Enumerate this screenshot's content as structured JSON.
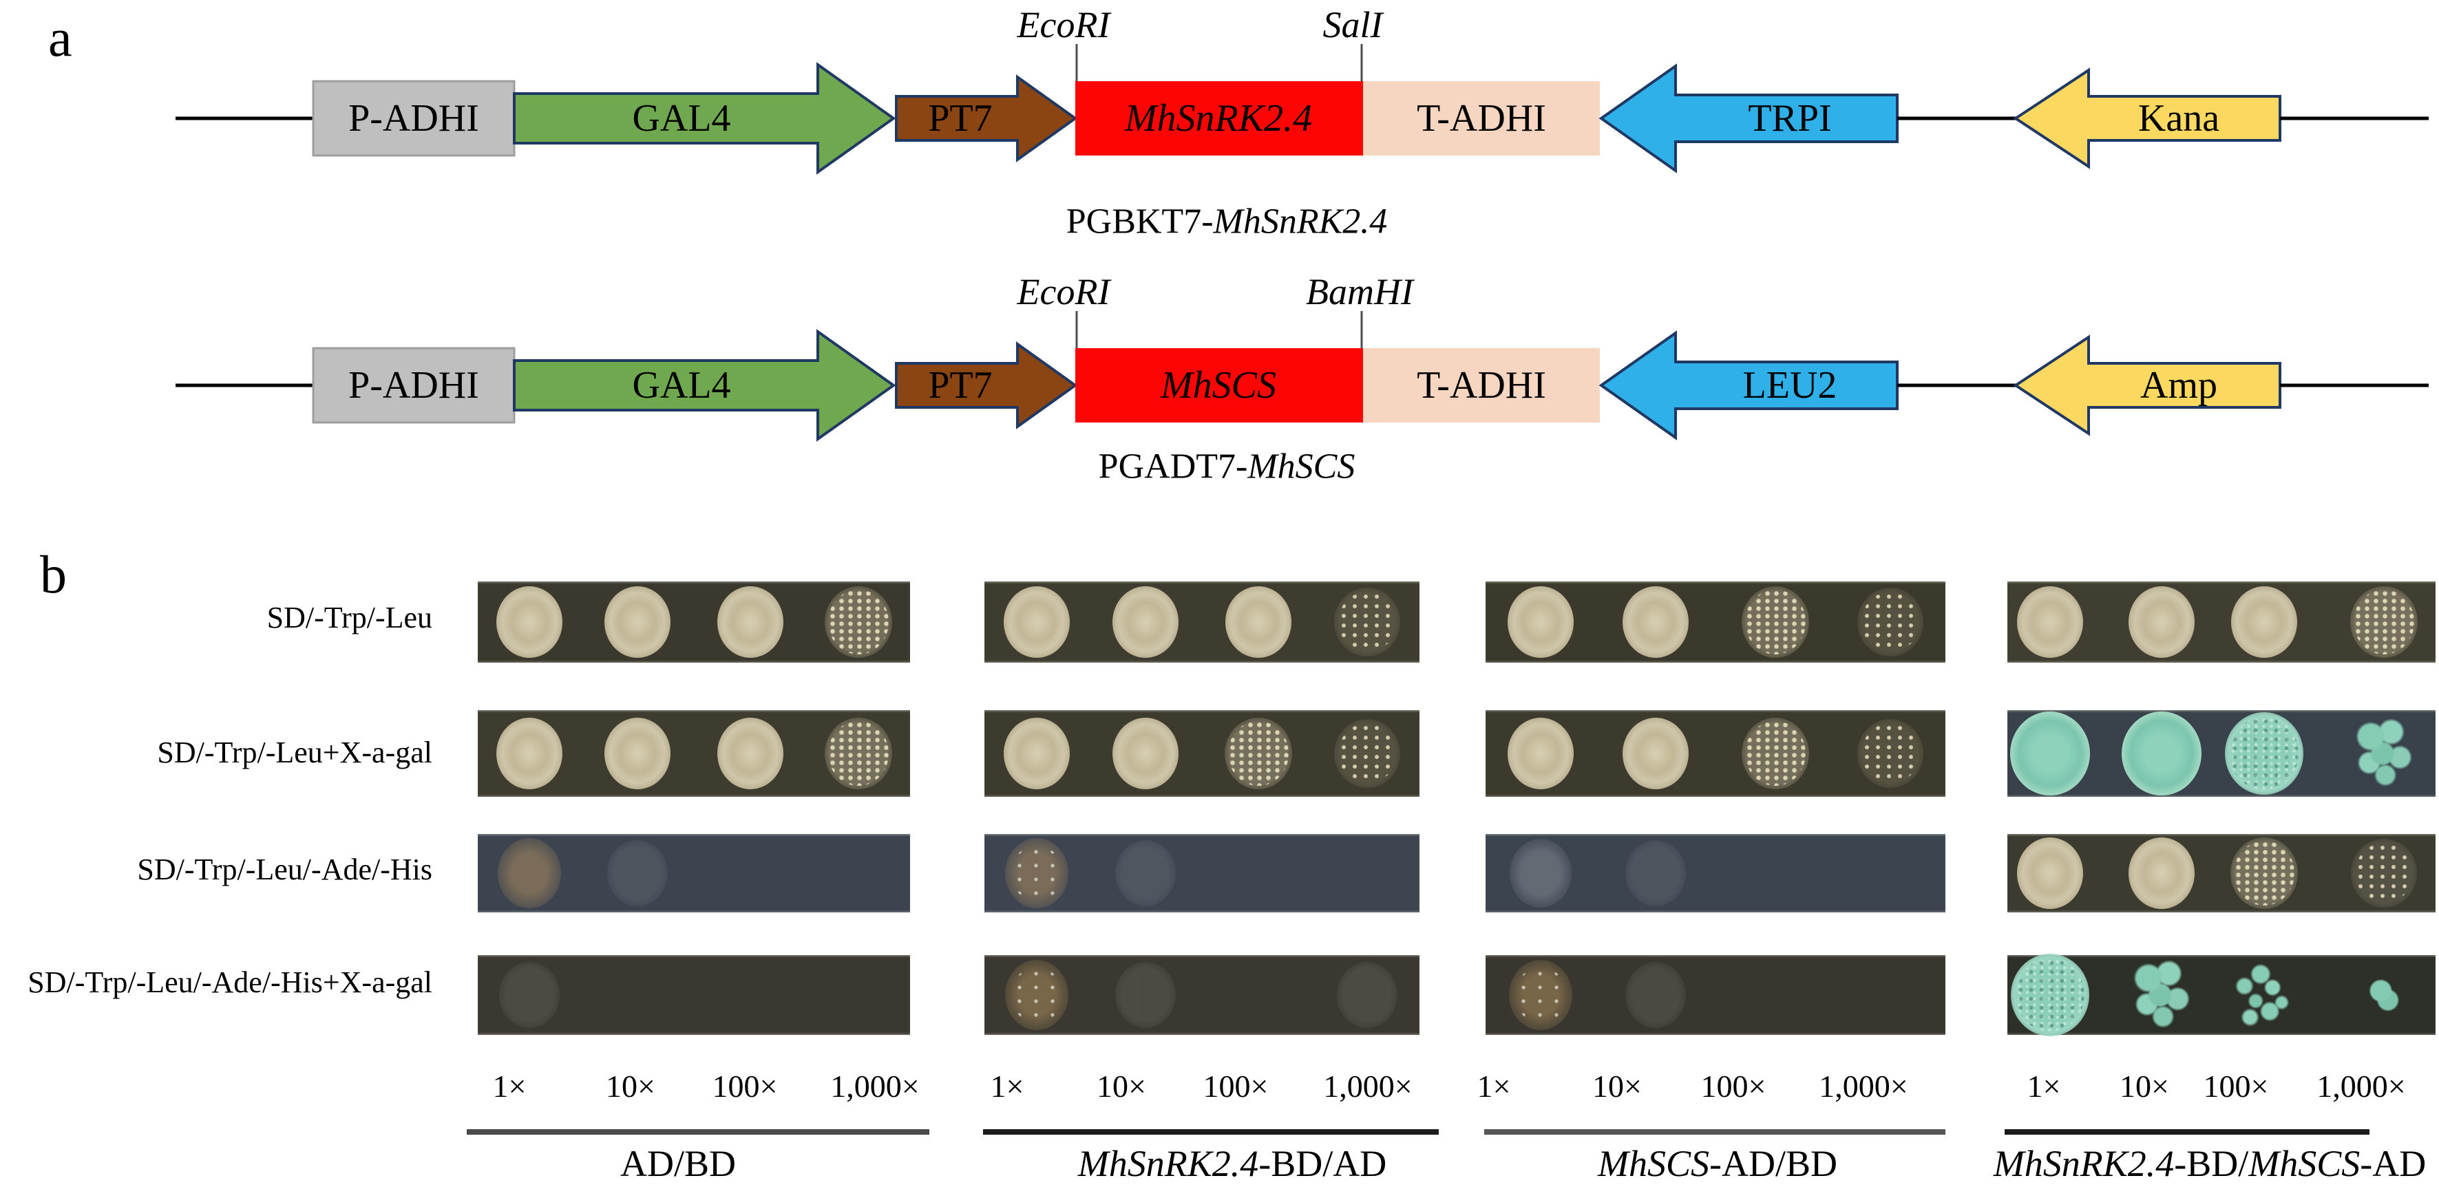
{
  "figure": {
    "panel_a_label": "a",
    "panel_b_label": "b"
  },
  "panel_a": {
    "restriction_sites": {
      "c1_left": "EcoRI",
      "c1_right": "SalI",
      "c2_left": "EcoRI",
      "c2_right": "BamHI"
    },
    "constructs": [
      {
        "promoter": "P-ADHI",
        "activator": "GAL4",
        "promoter2": "PT7",
        "gene": "MhSnRK2.4",
        "terminator": "T-ADHI",
        "selection_yeast": "TRPI",
        "selection_bacterial": "Kana",
        "caption_segments": [
          {
            "text": "PGBKT7-",
            "italic": false
          },
          {
            "text": "MhSnRK2.4",
            "italic": true
          }
        ]
      },
      {
        "promoter": "P-ADHI",
        "activator": "GAL4",
        "promoter2": "PT7",
        "gene": "MhSCS",
        "terminator": "T-ADHI",
        "selection_yeast": "LEU2",
        "selection_bacterial": "Amp",
        "caption_segments": [
          {
            "text": "PGADT7-",
            "italic": false
          },
          {
            "text": "MhSCS",
            "italic": true
          }
        ]
      }
    ],
    "colors": {
      "promoter_box": "#bfbfbf",
      "promoter_box_border": "#9e9e9e",
      "gal4_arrow": "#6fa84e",
      "pt7_arrow": "#8a4512",
      "gene_box": "#fe0505",
      "terminator_box": "#f6d6c0",
      "selection_yeast_arrow": "#2fb0e8",
      "selection_bacterial_arrow": "#fbd860",
      "arrow_outline": "#1f3864",
      "backbone_line": "#000000",
      "tick_line": "#4d4d4d"
    }
  },
  "panel_b": {
    "row_labels": [
      "SD/-Trp/-Leu",
      "SD/-Trp/-Leu+X-a-gal",
      "SD/-Trp/-Leu/-Ade/-His",
      "SD/-Trp/-Leu/-Ade/-His+X-a-gal"
    ],
    "dilutions": [
      "1×",
      "10×",
      "100×",
      "1,000×"
    ],
    "column_labels": [
      {
        "segments": [
          {
            "text": "AD/BD",
            "italic": false
          }
        ]
      },
      {
        "segments": [
          {
            "text": "MhSnRK2.4",
            "italic": true
          },
          {
            "text": "-BD/AD",
            "italic": false
          }
        ]
      },
      {
        "segments": [
          {
            "text": "MhSCS",
            "italic": true
          },
          {
            "text": "-AD/BD",
            "italic": false
          }
        ]
      },
      {
        "segments": [
          {
            "text": "MhSnRK2.4",
            "italic": true
          },
          {
            "text": "-BD/",
            "italic": false
          },
          {
            "text": "MhSCS",
            "italic": true
          },
          {
            "text": "-AD",
            "italic": false
          }
        ]
      }
    ],
    "colors": {
      "colony_cream": "#c8bfa0",
      "colony_blue": "#85cbb4"
    },
    "underline_colors": [
      "#4a4a4a",
      "#1c1c1c",
      "#565656",
      "#1c1c1c"
    ],
    "strips": [
      {
        "row": 0,
        "col": 0,
        "bg": "#3b392d",
        "spots": [
          "cream",
          "cream",
          "cream",
          "cream-speckle"
        ]
      },
      {
        "row": 0,
        "col": 1,
        "bg": "#3e3c2f",
        "spots": [
          "cream",
          "cream",
          "cream",
          "cream-scatter"
        ]
      },
      {
        "row": 0,
        "col": 2,
        "bg": "#3b392c",
        "spots": [
          "cream",
          "cream",
          "cream-speckle",
          "cream-scatter"
        ]
      },
      {
        "row": 0,
        "col": 3,
        "bg": "#403e31",
        "spots": [
          "cream",
          "cream",
          "cream",
          "cream-speckle"
        ]
      },
      {
        "row": 1,
        "col": 0,
        "bg": "#3e3c2f",
        "spots": [
          "cream",
          "cream",
          "cream",
          "cream-speckle"
        ]
      },
      {
        "row": 1,
        "col": 1,
        "bg": "#3d3b2e",
        "spots": [
          "cream",
          "cream",
          "cream-speckle",
          "cream-scatter"
        ]
      },
      {
        "row": 1,
        "col": 2,
        "bg": "#3c3a2d",
        "spots": [
          "cream",
          "cream",
          "cream-speckle",
          "cream-scatter"
        ]
      },
      {
        "row": 1,
        "col": 3,
        "bg": "#39424b",
        "spots": [
          "teal",
          "teal",
          "teal-speckle",
          "teal-cluster"
        ]
      },
      {
        "row": 2,
        "col": 0,
        "bg": "#3d4450",
        "spots": [
          "faint-cream",
          "ghost",
          "none",
          "none"
        ]
      },
      {
        "row": 2,
        "col": 1,
        "bg": "#3e4551",
        "spots": [
          "faint-colonies",
          "ghost",
          "none",
          "none"
        ]
      },
      {
        "row": 2,
        "col": 2,
        "bg": "#3c4450",
        "spots": [
          "faint-gray",
          "ghost",
          "none",
          "none"
        ]
      },
      {
        "row": 2,
        "col": 3,
        "bg": "#3b3b30",
        "spots": [
          "cream",
          "cream",
          "cream-speckle",
          "cream-scatter"
        ]
      },
      {
        "row": 3,
        "col": 0,
        "bg": "#3a3830",
        "spots": [
          "ghost",
          "none",
          "none",
          "none"
        ]
      },
      {
        "row": 3,
        "col": 1,
        "bg": "#3a3830",
        "spots": [
          "faint-colonies",
          "ghost",
          "none",
          "ghost"
        ]
      },
      {
        "row": 3,
        "col": 2,
        "bg": "#38362e",
        "spots": [
          "faint-colonies",
          "ghost",
          "none",
          "none"
        ]
      },
      {
        "row": 3,
        "col": 3,
        "bg": "#2d2f29",
        "spots": [
          "teal-speckle",
          "teal-cluster",
          "teal-scatter",
          "teal-small"
        ]
      }
    ]
  }
}
